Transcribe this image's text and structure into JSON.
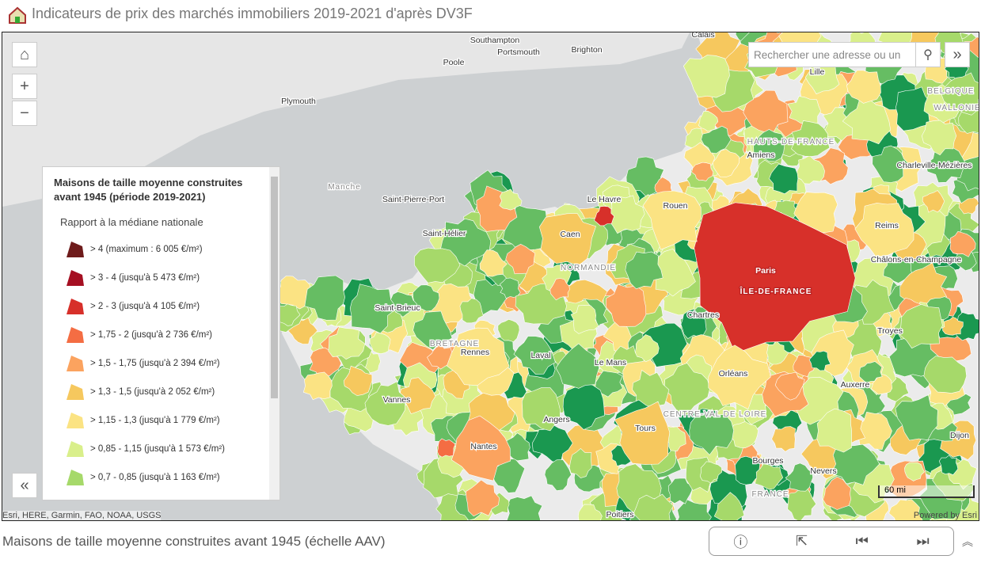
{
  "header": {
    "title": "Indicateurs de prix des marchés immobiliers 2019-2021 d'après DV3F"
  },
  "search": {
    "placeholder": "Rechercher une adresse ou un"
  },
  "legend": {
    "title_line1": "Maisons de taille moyenne construites",
    "title_line2": "avant 1945 (période 2019-2021)",
    "subtitle": "Rapport à la médiane nationale",
    "items": [
      {
        "label": "> 4 (maximum : 6 005 €/m²)",
        "color": "#6e1b1b"
      },
      {
        "label": "> 3 - 4 (jusqu'à 5 473 €/m²)",
        "color": "#a50f22"
      },
      {
        "label": "> 2 - 3 (jusqu'à 4 105 €/m²)",
        "color": "#d7302a"
      },
      {
        "label": "> 1,75 - 2 (jusqu'à 2 736 €/m²)",
        "color": "#f46d43"
      },
      {
        "label": "> 1,5 - 1,75 (jusqu'à 2 394 €/m²)",
        "color": "#fba35f"
      },
      {
        "label": "> 1,3 - 1,5 (jusqu'à 2 052 €/m²)",
        "color": "#f6c85e"
      },
      {
        "label": "> 1,15 - 1,3 (jusqu'à 1 779 €/m²)",
        "color": "#fbe383"
      },
      {
        "label": "> 0,85 - 1,15 (jusqu'à 1 573 €/m²)",
        "color": "#d9ef8b"
      },
      {
        "label": "> 0,7 - 0,85 (jusqu'à 1 163 €/m²)",
        "color": "#a6d96a"
      }
    ]
  },
  "map": {
    "places": [
      "Calais",
      "Southampton",
      "Portsmouth",
      "Brighton",
      "Poole",
      "Plymouth",
      "Lille",
      "BELGIQUE",
      "WALLONIE",
      "Manche",
      "Saint-Pierre-Port",
      "Saint-Hélier",
      "Le Havre",
      "Caen",
      "Rouen",
      "Amiens",
      "HAUTS-DE-FRANCE",
      "Charleville-Mézières",
      "Reims",
      "Paris",
      "ÎLE-DE-FRANCE",
      "Châlons-en-Champagne",
      "NORMANDIE",
      "Saint-Brieuc",
      "BRETAGNE",
      "Rennes",
      "Laval",
      "Le Mans",
      "Chartres",
      "Troyes",
      "Orléans",
      "Auxerre",
      "Vannes",
      "Angers",
      "Tours",
      "CENTRE-VAL DE LOIRE",
      "Nantes",
      "Bourges",
      "Nevers",
      "Dijon",
      "FRANCE",
      "Poitiers"
    ],
    "scale": "60 mi",
    "attribution": "Esri, HERE, Garmin, FAO, NOAA, USGS",
    "powered": "Powered by Esri"
  },
  "footer": {
    "caption": "Maisons de taille moyenne construites avant 1945 (échelle AAV)"
  }
}
